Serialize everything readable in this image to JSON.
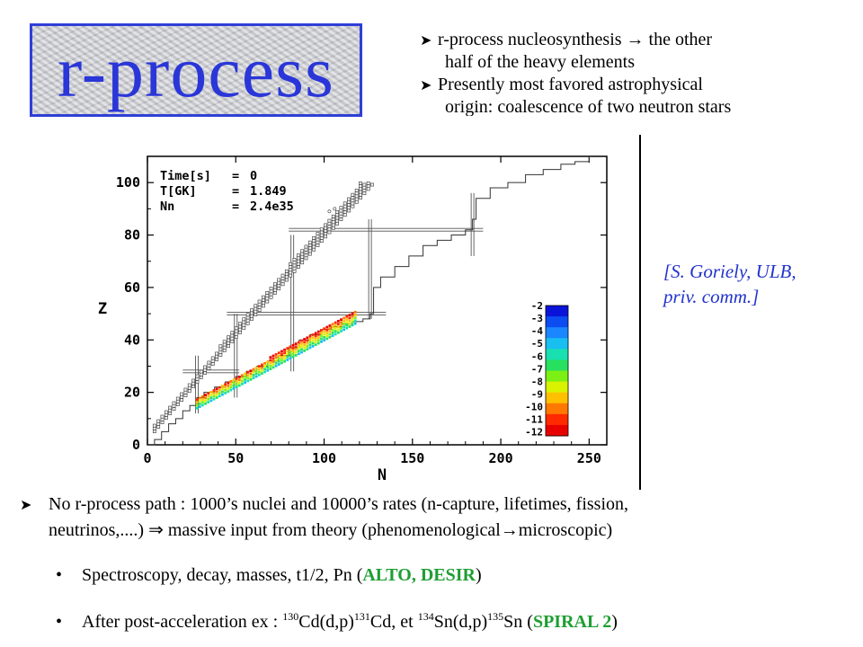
{
  "title": "r-process",
  "bullets_top": [
    {
      "line1": "r-process  nucleosynthesis  → the other",
      "line2": "half of the heavy elements"
    },
    {
      "line1": "Presently most favored astrophysical",
      "line2": "origin: coalescence of two neutron stars"
    }
  ],
  "reference": {
    "line1": "[S. Goriely, ULB,",
    "line2": "priv. comm.]"
  },
  "chart_data": {
    "type": "scatter",
    "xlabel": "N",
    "ylabel": "Z",
    "xlim": [
      0,
      260
    ],
    "ylim": [
      0,
      110
    ],
    "xticks": [
      "0",
      "50",
      "100",
      "150",
      "200",
      "250"
    ],
    "yticks": [
      "0",
      "20",
      "40",
      "60",
      "80",
      "100"
    ],
    "annotations": [
      {
        "key": "Time[s]",
        "eq": "=",
        "value": "0"
      },
      {
        "key": "T[GK]",
        "eq": "=",
        "value": "1.849"
      },
      {
        "key": "Nn",
        "eq": "=",
        "value": "2.4e35"
      }
    ],
    "colorbar_labels": [
      "-2",
      "-3",
      "-4",
      "-5",
      "-6",
      "-7",
      "-8",
      "-9",
      "-10",
      "-11",
      "-12"
    ],
    "colorbar_colors": [
      "#0a14d8",
      "#0c4cf0",
      "#1a86ff",
      "#18bff0",
      "#19e0b0",
      "#28e060",
      "#7cf014",
      "#d8f200",
      "#ffc000",
      "#ff7800",
      "#ff2a00",
      "#e80000"
    ],
    "magic_numbers": {
      "N": [
        28,
        50,
        82,
        126,
        184
      ],
      "Z": [
        28,
        50,
        82
      ]
    }
  },
  "main_bullet": {
    "line1": "No r-process path : 1000’s nuclei and 10000’s rates (n-capture, lifetimes, fission,",
    "line2": "neutrinos,....) ⇒ massive input from theory (phenomenological→microscopic)"
  },
  "sub_bullets": [
    {
      "text": "Spectroscopy, decay, masses, t1/2, Pn  (",
      "highlight": "ALTO, DESIR",
      "end": ")"
    },
    {
      "pre": "After post-acceleration ex : ",
      "m1": "130",
      "r1": "Cd(d,p)",
      "m2": "131",
      "r2": "Cd, et ",
      "m3": "134",
      "r3": "Sn(d,p)",
      "m4": "135",
      "r4": "Sn (",
      "highlight": "SPIRAL 2",
      "end": ")"
    }
  ],
  "colors": {
    "title": "#2a36d8",
    "reference": "#2233cc",
    "highlight": "#1e9e32"
  }
}
